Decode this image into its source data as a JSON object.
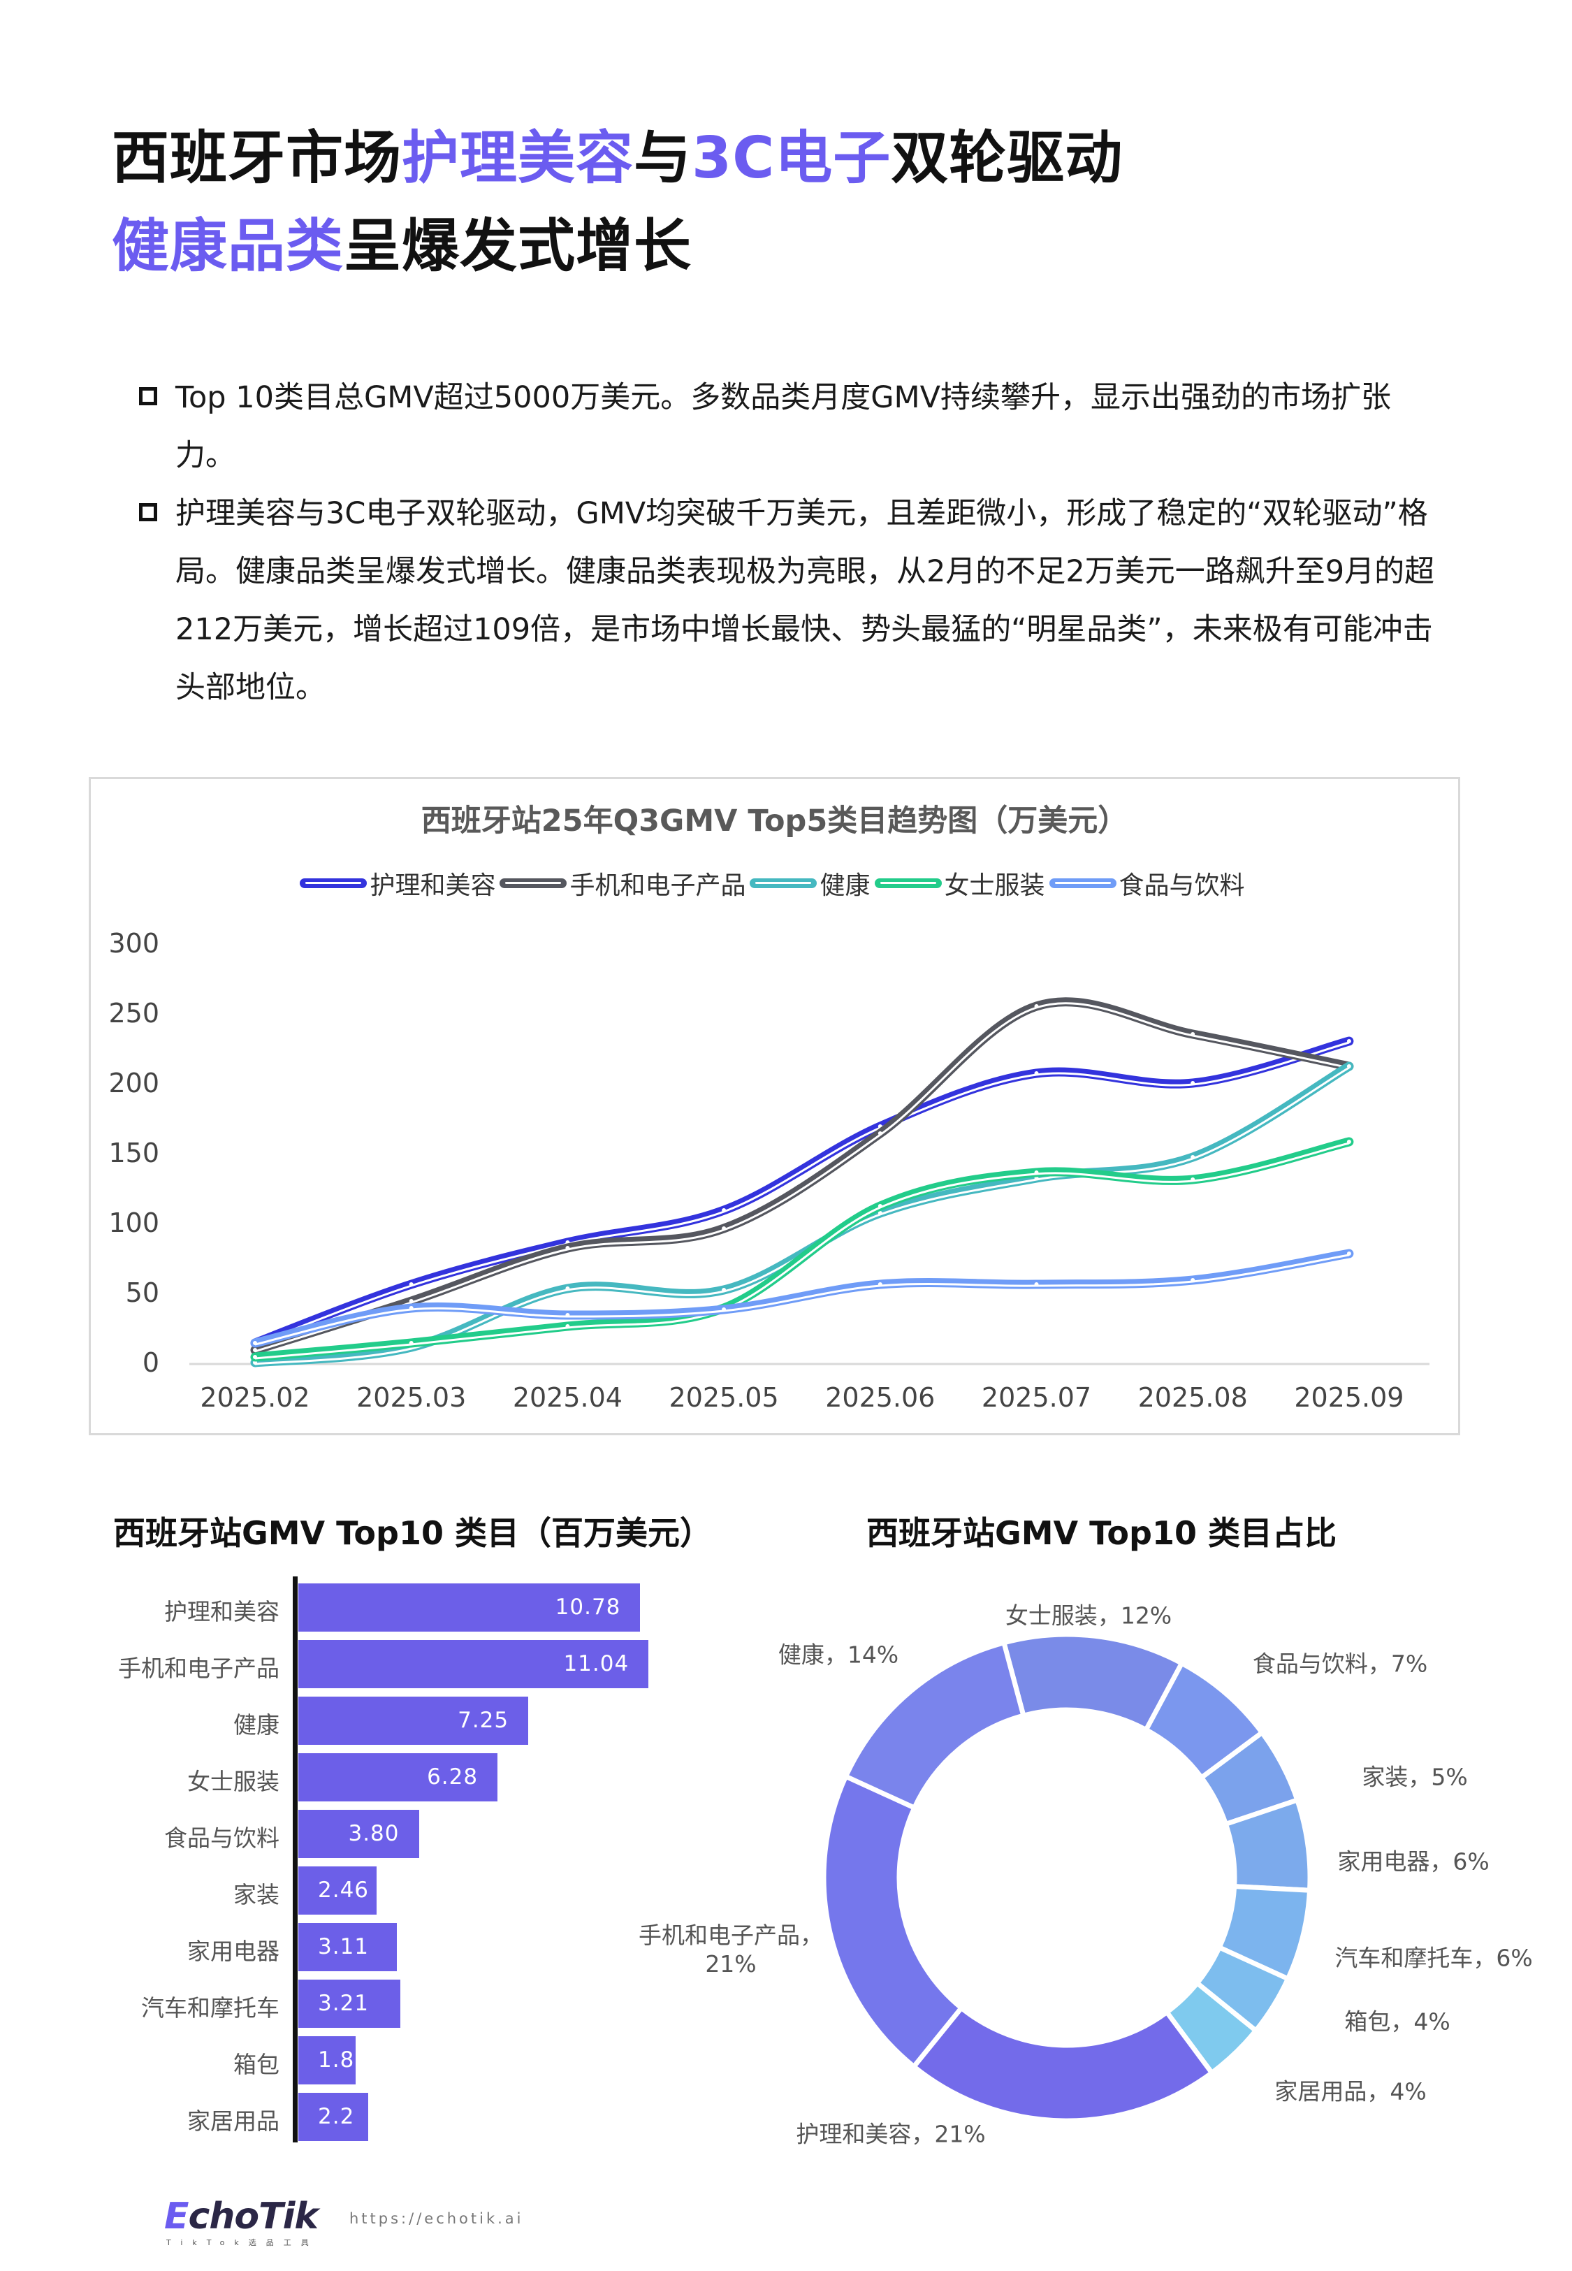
{
  "title": {
    "line1": [
      {
        "text": "西班牙市场",
        "highlight": false
      },
      {
        "text": "护理美容",
        "highlight": true
      },
      {
        "text": "与",
        "highlight": false
      },
      {
        "text": "3C电子",
        "highlight": true
      },
      {
        "text": "双轮驱动",
        "highlight": false
      }
    ],
    "line2": [
      {
        "text": "健康品类",
        "highlight": true
      },
      {
        "text": "呈爆发式增长",
        "highlight": false
      }
    ]
  },
  "bullets": [
    "Top 10类目总GMV超过5000万美元。多数品类月度GMV持续攀升，显示出强劲的市场扩张力。",
    "护理美容与3C电子双轮驱动，GMV均突破千万美元，且差距微小，形成了稳定的“双轮驱动”格局。健康品类呈爆发式增长。健康品类表现极为亮眼，从2月的不足2万美元一路飙升至9月的超212万美元，增长超过109倍，是市场中增长最快、势头最猛的“明星品类”，未来极有可能冲击头部地位。"
  ],
  "accent_color": "#6b5cf0",
  "chart_data": [
    {
      "type": "line",
      "title": "西班牙站25年Q3GMV Top5类目趋势图（万美元）",
      "xlabel": "",
      "ylabel": "",
      "x": [
        "2025.02",
        "2025.03",
        "2025.04",
        "2025.05",
        "2025.06",
        "2025.07",
        "2025.08",
        "2025.09"
      ],
      "ylim": [
        0,
        300
      ],
      "yticks": [
        "0",
        "50",
        "100",
        "150",
        "200",
        "250",
        "300"
      ],
      "legend_position": "top",
      "series": [
        {
          "name": "护理和美容",
          "color": "#3333dd",
          "values": [
            15,
            57,
            87,
            110,
            170,
            208,
            201,
            231
          ]
        },
        {
          "name": "手机和电子产品",
          "color": "#55575f",
          "values": [
            10,
            45,
            83,
            97,
            165,
            256,
            236,
            213
          ]
        },
        {
          "name": "健康",
          "color": "#45b8c0",
          "values": [
            1,
            12,
            54,
            53,
            108,
            133,
            148,
            213
          ]
        },
        {
          "name": "女士服装",
          "color": "#22cc8a",
          "values": [
            5,
            15,
            27,
            40,
            113,
            137,
            132,
            159
          ]
        },
        {
          "name": "食品与饮料",
          "color": "#6f9cf7",
          "values": [
            15,
            40,
            35,
            39,
            57,
            57,
            60,
            79
          ]
        }
      ]
    },
    {
      "type": "bar",
      "orientation": "horizontal",
      "title": "西班牙站GMV Top10 类目（百万美元）",
      "color": "#6c5fe8",
      "categories": [
        "护理和美容",
        "手机和电子产品",
        "健康",
        "女士服装",
        "食品与饮料",
        "家装",
        "家用电器",
        "汽车和摩托车",
        "箱包",
        "家居用品"
      ],
      "values": [
        10.78,
        11.04,
        7.25,
        6.28,
        3.8,
        2.46,
        3.11,
        3.21,
        1.8,
        2.2
      ],
      "labels": [
        "10.78",
        "11.04",
        "7.25",
        "6.28",
        "3.80",
        "2.46",
        "3.11",
        "3.21",
        "1.80",
        "2.2"
      ]
    },
    {
      "type": "pie",
      "donut": true,
      "title": "西班牙站GMV Top10 类目占比",
      "slices": [
        {
          "name": "女士服装",
          "percent": 12,
          "label": "女士服装，12%",
          "color": "#7a8be8"
        },
        {
          "name": "食品与饮料",
          "percent": 7,
          "label": "食品与饮料，7%",
          "color": "#7b97ee"
        },
        {
          "name": "家装",
          "percent": 5,
          "label": "家装，5%",
          "color": "#7ba2ec"
        },
        {
          "name": "家用电器",
          "percent": 6,
          "label": "家用电器，6%",
          "color": "#7caaec"
        },
        {
          "name": "汽车和摩托车",
          "percent": 6,
          "label": "汽车和摩托车，6%",
          "color": "#7cb4ee"
        },
        {
          "name": "箱包",
          "percent": 4,
          "label": "箱包，4%",
          "color": "#7dbdee"
        },
        {
          "name": "家居用品",
          "percent": 4,
          "label": "家居用品，4%",
          "color": "#7fcaee"
        },
        {
          "name": "护理和美容",
          "percent": 21,
          "label": "护理和美容，21%",
          "color": "#736bea"
        },
        {
          "name": "手机和电子产品",
          "percent": 21,
          "label": "手机和电子产品，\n21%",
          "color": "#7577ec"
        },
        {
          "name": "健康",
          "percent": 14,
          "label": "健康，14%",
          "color": "#7a84ec"
        }
      ]
    }
  ],
  "footer": {
    "logo": "EchoTik",
    "logo_sub": "TikTok选品工具",
    "url": "https://echotik.ai"
  }
}
